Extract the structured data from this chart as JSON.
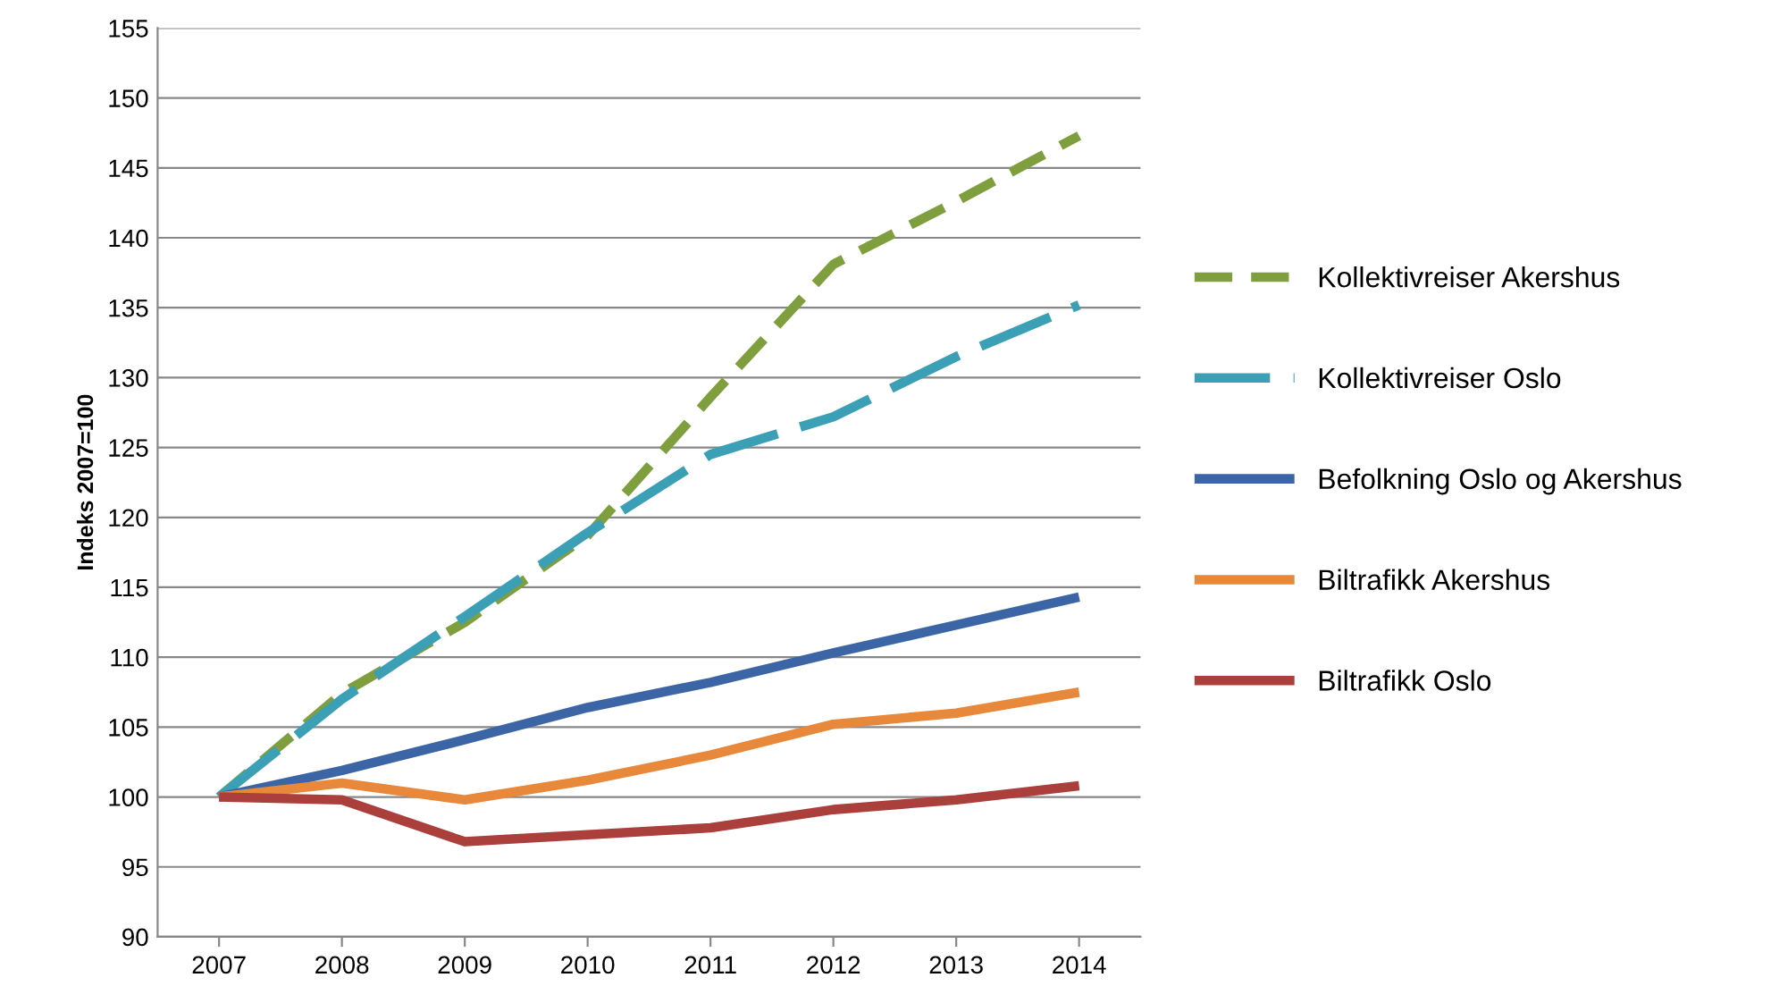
{
  "chart_data": {
    "type": "line",
    "ylabel": "Indeks 2007=100",
    "categories": [
      "2007",
      "2008",
      "2009",
      "2010",
      "2011",
      "2012",
      "2013",
      "2014"
    ],
    "series": [
      {
        "name": "Kollektivreiser Akershus",
        "color": "#7f9f3f",
        "line_style": "dashed",
        "values": [
          100,
          107.4,
          112.5,
          118.7,
          128.6,
          138.1,
          142.6,
          147.3
        ]
      },
      {
        "name": "Kollektivreiser Oslo",
        "color": "#3b9fb5",
        "line_style": "dashed",
        "values": [
          100,
          107,
          112.9,
          118.9,
          124.5,
          127.2,
          131.5,
          135.2
        ]
      },
      {
        "name": "Befolkning Oslo og Akershus",
        "color": "#3b65a5",
        "line_style": "solid",
        "values": [
          100,
          101.9,
          104.1,
          106.4,
          108.2,
          110.3,
          112.3,
          114.3
        ]
      },
      {
        "name": "Biltrafikk Akershus",
        "color": "#e8883a",
        "line_style": "solid",
        "values": [
          100,
          101,
          99.8,
          101.2,
          103,
          105.2,
          106,
          107.5
        ]
      },
      {
        "name": "Biltrafikk Oslo",
        "color": "#aa3f3c",
        "line_style": "solid",
        "values": [
          100,
          99.8,
          96.8,
          97.3,
          97.8,
          99.1,
          99.8,
          100.8
        ]
      }
    ],
    "ylim": [
      90,
      155
    ],
    "yticks": [
      90,
      95,
      100,
      105,
      110,
      115,
      120,
      125,
      130,
      135,
      140,
      145,
      150,
      155
    ],
    "grid": "y",
    "legend": "right",
    "marker": "none"
  }
}
